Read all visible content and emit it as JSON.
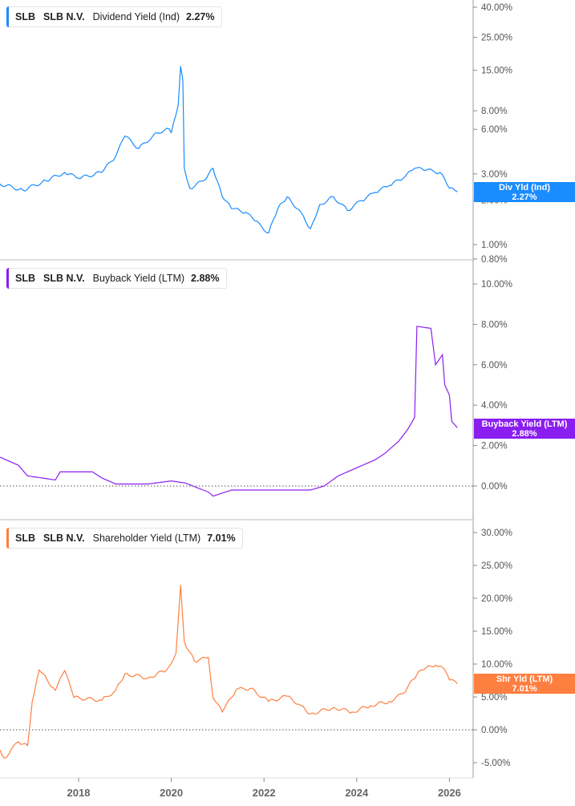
{
  "colors": {
    "dividend": "#1a8cff",
    "buyback": "#8a1ef0",
    "shareholder": "#ff7f40"
  },
  "chart_data": [
    {
      "type": "line",
      "ticker": "SLB",
      "company": "SLB N.V.",
      "metric": "Dividend Yield (Ind)",
      "value_label": "2.27%",
      "tag_title": "Div Yld (Ind)",
      "tag_value": "2.27%",
      "yscale": "log",
      "yticks": [
        "40.00%",
        "25.00%",
        "15.00%",
        "8.00%",
        "6.00%",
        "3.00%",
        "2.00%",
        "1.00%",
        "0.80%"
      ],
      "ytick_values": [
        40,
        25,
        15,
        8,
        6,
        3,
        2,
        1,
        0.8
      ],
      "x": [
        2016.3,
        2016.8,
        2017.3,
        2017.7,
        2018.0,
        2018.5,
        2018.8,
        2019.0,
        2019.3,
        2019.6,
        2019.9,
        2020.0,
        2020.15,
        2020.2,
        2020.25,
        2020.28,
        2020.4,
        2020.7,
        2020.9,
        2021.1,
        2021.3,
        2021.6,
        2021.8,
        2022.1,
        2022.3,
        2022.5,
        2022.8,
        2023.0,
        2023.2,
        2023.5,
        2023.8,
        2024.1,
        2024.4,
        2024.7,
        2025.0,
        2025.25,
        2025.5,
        2025.8,
        2026.0,
        2026.17
      ],
      "y": [
        2.57,
        2.33,
        2.7,
        3.07,
        2.8,
        3.07,
        3.94,
        5.4,
        4.45,
        5.4,
        6.1,
        5.7,
        8.8,
        16,
        12.9,
        3.27,
        2.4,
        2.7,
        3.27,
        2.1,
        1.75,
        1.65,
        1.45,
        1.2,
        1.75,
        2.1,
        1.65,
        1.28,
        1.86,
        2.1,
        1.7,
        1.98,
        2.25,
        2.5,
        2.8,
        3.27,
        3.18,
        3.07,
        2.4,
        2.27
      ]
    },
    {
      "type": "line",
      "ticker": "SLB",
      "company": "SLB N.V.",
      "metric": "Buyback Yield (LTM)",
      "value_label": "2.88%",
      "tag_title": "Buyback Yield (LTM)",
      "tag_value": "2.88%",
      "yscale": "linear",
      "yticks": [
        "10.00%",
        "8.00%",
        "6.00%",
        "4.00%",
        "2.00%",
        "0.00%"
      ],
      "ytick_values": [
        10,
        8,
        6,
        4,
        2,
        0
      ],
      "x": [
        2016.3,
        2016.7,
        2016.9,
        2017.5,
        2017.6,
        2018.3,
        2018.5,
        2018.8,
        2019.5,
        2020.0,
        2020.3,
        2020.8,
        2020.9,
        2021.3,
        2023.0,
        2023.3,
        2023.6,
        2024.0,
        2024.4,
        2024.6,
        2024.9,
        2025.1,
        2025.25,
        2025.3,
        2025.6,
        2025.7,
        2025.85,
        2025.9,
        2026.0,
        2026.05,
        2026.17
      ],
      "y": [
        1.43,
        1.03,
        0.5,
        0.3,
        0.7,
        0.7,
        0.4,
        0.1,
        0.1,
        0.25,
        0.15,
        -0.3,
        -0.5,
        -0.2,
        -0.2,
        0,
        0.5,
        0.9,
        1.3,
        1.6,
        2.2,
        2.8,
        3.4,
        7.9,
        7.8,
        6.0,
        6.5,
        5.0,
        4.5,
        3.2,
        2.88
      ]
    },
    {
      "type": "line",
      "ticker": "SLB",
      "company": "SLB N.V.",
      "metric": "Shareholder Yield (LTM)",
      "value_label": "7.01%",
      "tag_title": "Shr Yld (LTM)",
      "tag_value": "7.01%",
      "yscale": "linear",
      "yticks": [
        "30.00%",
        "25.00%",
        "20.00%",
        "15.00%",
        "10.00%",
        "5.00%",
        "0.00%",
        "-5.00%"
      ],
      "ytick_values": [
        30,
        25,
        20,
        15,
        10,
        5,
        0,
        -5
      ],
      "x": [
        2016.3,
        2016.4,
        2016.7,
        2016.9,
        2017.0,
        2017.15,
        2017.5,
        2017.7,
        2017.9,
        2018.5,
        2018.8,
        2019.0,
        2019.5,
        2019.9,
        2020.1,
        2020.2,
        2020.28,
        2020.5,
        2020.8,
        2020.9,
        2021.1,
        2021.4,
        2021.7,
        2022.1,
        2022.5,
        2022.8,
        2023.0,
        2023.5,
        2023.9,
        2024.3,
        2024.7,
        2025.0,
        2025.2,
        2025.4,
        2025.7,
        2025.9,
        2026.0,
        2026.17
      ],
      "y": [
        -3,
        -4.3,
        -1.8,
        -2.4,
        4.3,
        9.1,
        6,
        9,
        4.9,
        4.5,
        6,
        8.5,
        7.9,
        9.1,
        11.6,
        22,
        13.4,
        10.4,
        11,
        4.9,
        2.7,
        6.1,
        6.3,
        4.3,
        5.1,
        3.7,
        2.4,
        3.4,
        2.7,
        3.7,
        4.3,
        5.5,
        7.6,
        9.1,
        9.8,
        9.1,
        7.6,
        7.01
      ]
    }
  ],
  "xaxis": {
    "ticks": [
      "2018",
      "2020",
      "2022",
      "2024",
      "2026"
    ],
    "tick_values": [
      2018,
      2020,
      2022,
      2024,
      2026
    ]
  }
}
